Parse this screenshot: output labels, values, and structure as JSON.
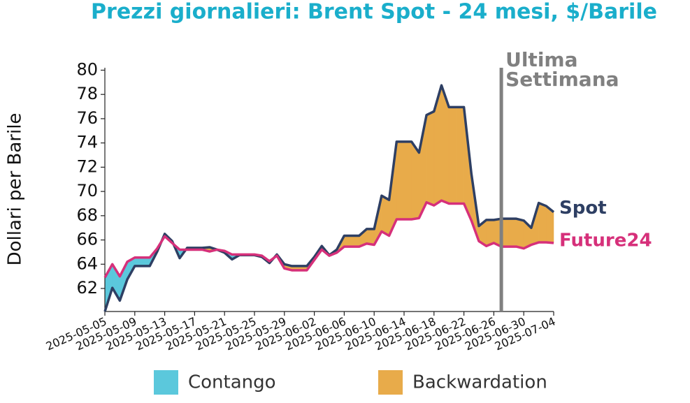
{
  "chart_data": {
    "type": "line",
    "title": "Prezzi giornalieri: Brent Spot - 24 mesi, $/Barile",
    "y_label": "Dollari per Barile",
    "x": [
      "2025-05-05",
      "2025-05-06",
      "2025-05-07",
      "2025-05-08",
      "2025-05-09",
      "2025-05-10",
      "2025-05-11",
      "2025-05-12",
      "2025-05-13",
      "2025-05-14",
      "2025-05-15",
      "2025-05-16",
      "2025-05-17",
      "2025-05-18",
      "2025-05-19",
      "2025-05-20",
      "2025-05-21",
      "2025-05-22",
      "2025-05-23",
      "2025-05-24",
      "2025-05-25",
      "2025-05-26",
      "2025-05-27",
      "2025-05-28",
      "2025-05-29",
      "2025-05-30",
      "2025-05-31",
      "2025-06-01",
      "2025-06-02",
      "2025-06-03",
      "2025-06-04",
      "2025-06-05",
      "2025-06-06",
      "2025-06-07",
      "2025-06-08",
      "2025-06-09",
      "2025-06-10",
      "2025-06-11",
      "2025-06-12",
      "2025-06-13",
      "2025-06-14",
      "2025-06-15",
      "2025-06-16",
      "2025-06-17",
      "2025-06-18",
      "2025-06-19",
      "2025-06-20",
      "2025-06-21",
      "2025-06-22",
      "2025-06-23",
      "2025-06-24",
      "2025-06-25",
      "2025-06-26",
      "2025-06-27",
      "2025-06-28",
      "2025-06-29",
      "2025-06-30",
      "2025-07-01",
      "2025-07-02",
      "2025-07-03",
      "2025-07-04"
    ],
    "series": [
      {
        "name": "Spot",
        "color": "#2e3f63",
        "values": [
          60.1,
          62.05,
          61.0,
          62.75,
          63.85,
          63.85,
          63.85,
          65.05,
          66.5,
          65.9,
          64.5,
          65.35,
          65.35,
          65.35,
          65.4,
          65.2,
          64.95,
          64.4,
          64.75,
          64.75,
          64.75,
          64.6,
          64.1,
          64.8,
          64.0,
          63.85,
          63.85,
          63.85,
          64.6,
          65.5,
          64.75,
          65.2,
          66.35,
          66.35,
          66.35,
          66.9,
          66.9,
          69.65,
          69.3,
          74.1,
          74.1,
          74.1,
          73.2,
          76.3,
          76.6,
          78.75,
          76.95,
          76.95,
          76.95,
          71.45,
          67.15,
          67.65,
          67.65,
          67.75,
          67.75,
          67.75,
          67.6,
          67.0,
          69.05,
          68.8,
          68.3
        ]
      },
      {
        "name": "Future24",
        "color": "#d6307a",
        "values": [
          62.9,
          64.0,
          63.0,
          64.2,
          64.55,
          64.55,
          64.55,
          65.3,
          66.3,
          65.75,
          65.2,
          65.2,
          65.2,
          65.2,
          65.05,
          65.2,
          65.1,
          64.8,
          64.8,
          64.8,
          64.8,
          64.7,
          64.25,
          64.7,
          63.65,
          63.5,
          63.5,
          63.5,
          64.35,
          65.2,
          64.7,
          64.95,
          65.45,
          65.45,
          65.45,
          65.7,
          65.6,
          66.7,
          66.35,
          67.7,
          67.7,
          67.7,
          67.8,
          69.1,
          68.85,
          69.25,
          69.0,
          69.0,
          69.0,
          67.6,
          65.9,
          65.5,
          65.75,
          65.45,
          65.45,
          65.45,
          65.3,
          65.6,
          65.8,
          65.8,
          65.75
        ]
      }
    ],
    "legend": [
      {
        "name": "Contango",
        "color": "#5bc8dc"
      },
      {
        "name": "Backwardation",
        "color": "#e8ab4a"
      }
    ],
    "annotation": {
      "text": [
        "Ultima",
        "Settimana"
      ],
      "x": "2025-06-27",
      "color": "#808080"
    },
    "xlim": [
      "2025-05-05",
      "2025-07-04"
    ],
    "xticks": [
      "2025-05-05",
      "2025-05-09",
      "2025-05-13",
      "2025-05-17",
      "2025-05-21",
      "2025-05-25",
      "2025-05-29",
      "2025-06-02",
      "2025-06-06",
      "2025-06-10",
      "2025-06-14",
      "2025-06-18",
      "2025-06-22",
      "2025-06-26",
      "2025-06-30",
      "2025-07-04"
    ],
    "ylim": [
      60.1,
      80.2
    ],
    "yticks": [
      62,
      64,
      66,
      68,
      70,
      72,
      74,
      76,
      78,
      80
    ]
  }
}
